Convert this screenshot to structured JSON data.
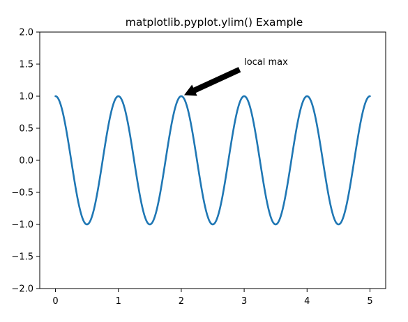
{
  "chart_data": {
    "type": "line",
    "title": "matplotlib.pyplot.ylim() Example",
    "xlabel": "",
    "ylabel": "",
    "xlim": [
      -0.25,
      5.25
    ],
    "ylim": [
      -2.0,
      2.0
    ],
    "x_ticks": [
      0,
      1,
      2,
      3,
      4,
      5
    ],
    "x_tick_labels": [
      "0",
      "1",
      "2",
      "3",
      "4",
      "5"
    ],
    "y_ticks": [
      2.0,
      1.5,
      1.0,
      0.5,
      0.0,
      -0.5,
      -1.0,
      -1.5,
      -2.0
    ],
    "y_tick_labels": [
      "2.0",
      "1.5",
      "1.0",
      "0.5",
      "0.0",
      "−0.5",
      "−1.0",
      "−1.5",
      "−2.0"
    ],
    "grid": false,
    "series": [
      {
        "function": "cos(2*pi*x)",
        "color": "#1f77b4",
        "x_range": [
          0,
          5
        ],
        "points": [
          [
            0.0,
            1.0
          ],
          [
            0.5,
            -1.0
          ],
          [
            1.0,
            1.0
          ],
          [
            1.5,
            -1.0
          ],
          [
            2.0,
            1.0
          ],
          [
            2.5,
            -1.0
          ],
          [
            3.0,
            1.0
          ],
          [
            3.5,
            -1.0
          ],
          [
            4.0,
            1.0
          ],
          [
            4.5,
            -1.0
          ],
          [
            5.0,
            1.0
          ]
        ]
      }
    ],
    "annotations": [
      {
        "text": "local max",
        "xy": [
          2.0,
          1.0
        ],
        "xytext": [
          3.0,
          1.5
        ],
        "arrow_color": "#000000"
      }
    ]
  }
}
